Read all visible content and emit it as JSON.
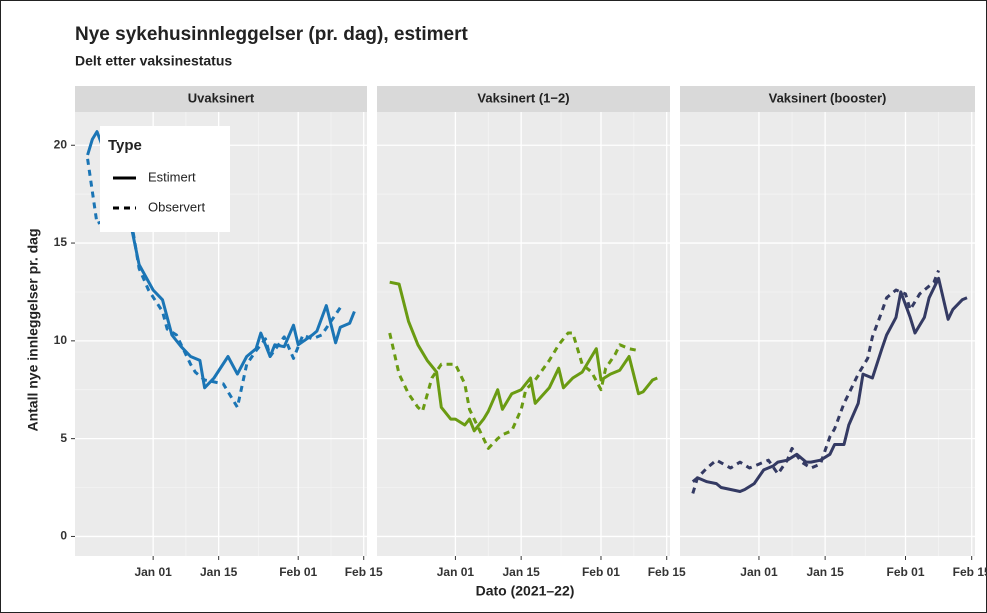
{
  "chart_data": {
    "type": "line",
    "title": "Nye sykehusinnleggelser (pr. dag), estimert",
    "subtitle": "Delt etter vaksinestatus",
    "x_label": "Dato (2021–22)",
    "y_label": "Antall nye innleggelser pr. dag",
    "legend_title": "Type",
    "legend": "top-left",
    "grid": true,
    "ylim": [
      -1.0,
      21.7
    ],
    "yticks": [
      0,
      5,
      10,
      15,
      20
    ],
    "xlim": [
      -16.7,
      45.7
    ],
    "xticks": [
      {
        "value": 0,
        "label": "Jan 01"
      },
      {
        "value": 14,
        "label": "Jan 15"
      },
      {
        "value": 31,
        "label": "Feb 01"
      },
      {
        "value": 45,
        "label": "Feb 15"
      }
    ],
    "facets": [
      {
        "title": "Uvaksinert",
        "series": [
          {
            "name": "Estimert",
            "color": "#1b75b5",
            "dash": false,
            "x": [
              -14,
              -13,
              -12,
              -5,
              -3,
              0,
              2,
              4,
              6,
              8,
              10,
              11,
              13,
              16,
              18,
              20,
              22,
              23,
              25,
              26,
              28,
              30,
              31,
              34,
              35,
              37,
              39,
              40,
              42,
              43
            ],
            "values": [
              19.5,
              20.3,
              20.7,
              16.2,
              13.9,
              12.6,
              12.1,
              10.3,
              9.7,
              9.2,
              9.0,
              7.6,
              8.1,
              9.2,
              8.3,
              9.2,
              9.6,
              10.4,
              9.2,
              9.8,
              9.7,
              10.8,
              9.8,
              10.3,
              10.5,
              11.8,
              9.9,
              10.7,
              10.9,
              11.5
            ]
          },
          {
            "name": "Observert",
            "color": "#1b75b5",
            "dash": true,
            "x": [
              -14,
              -12,
              -5,
              -3,
              -1,
              2,
              3,
              5,
              8,
              9,
              11,
              13,
              15,
              18,
              20,
              22,
              24,
              25,
              28,
              30,
              32,
              34,
              36,
              38,
              40
            ],
            "values": [
              19.3,
              16.0,
              16.6,
              13.7,
              12.6,
              11.5,
              10.6,
              10.3,
              8.8,
              8.4,
              8.0,
              7.9,
              7.8,
              6.6,
              8.8,
              9.5,
              10.1,
              9.2,
              10.2,
              9.1,
              10.3,
              10.1,
              10.3,
              11.0,
              11.7
            ]
          }
        ]
      },
      {
        "title": "Vaksinert (1−2)",
        "series": [
          {
            "name": "Estimert",
            "color": "#6a9b12",
            "dash": false,
            "x": [
              -14,
              -12,
              -10,
              -8,
              -6,
              -4,
              -3,
              -1,
              0,
              2,
              3,
              4,
              6,
              7,
              9,
              10,
              12,
              14,
              16,
              17,
              20,
              22,
              23,
              25,
              27,
              30,
              31,
              33,
              35,
              37,
              39,
              40,
              42,
              43
            ],
            "values": [
              13.0,
              12.9,
              11.0,
              9.8,
              9.0,
              8.4,
              6.6,
              6.0,
              6.0,
              5.7,
              6.0,
              5.4,
              6.0,
              6.4,
              7.5,
              6.5,
              7.3,
              7.5,
              8.1,
              6.8,
              7.6,
              8.6,
              7.6,
              8.1,
              8.4,
              9.6,
              8.0,
              8.3,
              8.5,
              9.2,
              7.3,
              7.4,
              8.0,
              8.1
            ]
          },
          {
            "name": "Observert",
            "color": "#6a9b12",
            "dash": true,
            "x": [
              -14,
              -12,
              -10,
              -8,
              -7,
              -5,
              -3,
              -2,
              0,
              2,
              3,
              5,
              7,
              9,
              10,
              12,
              14,
              15,
              17,
              20,
              22,
              24,
              25,
              27,
              29,
              31,
              32,
              34,
              35,
              37,
              39
            ],
            "values": [
              10.4,
              8.3,
              7.3,
              6.6,
              6.4,
              8.1,
              8.8,
              8.8,
              8.8,
              7.8,
              6.5,
              5.5,
              4.5,
              5.0,
              5.2,
              5.4,
              6.5,
              7.5,
              8.0,
              9.0,
              9.8,
              10.4,
              10.4,
              8.8,
              8.4,
              7.5,
              8.6,
              9.3,
              9.8,
              9.6,
              9.5
            ]
          }
        ]
      },
      {
        "title": "Vaksinert (booster)",
        "series": [
          {
            "name": "Estimert",
            "color": "#343a63",
            "dash": false,
            "x": [
              -14,
              -13,
              -11,
              -9,
              -8,
              -6,
              -4,
              -3,
              -1,
              1,
              3,
              4,
              6,
              8,
              10,
              11,
              13,
              15,
              16,
              18,
              19,
              21,
              22,
              24,
              26,
              27,
              29,
              30,
              32,
              33,
              35,
              36,
              38,
              40,
              41,
              43,
              44
            ],
            "values": [
              2.8,
              3.0,
              2.8,
              2.7,
              2.5,
              2.4,
              2.3,
              2.4,
              2.7,
              3.4,
              3.6,
              3.8,
              3.9,
              4.2,
              3.8,
              3.8,
              3.9,
              4.2,
              4.7,
              4.7,
              5.7,
              6.8,
              8.3,
              8.1,
              9.6,
              10.3,
              11.2,
              12.5,
              11.2,
              10.4,
              11.2,
              12.2,
              13.2,
              11.1,
              11.6,
              12.1,
              12.2
            ]
          },
          {
            "name": "Observert",
            "color": "#343a63",
            "dash": true,
            "x": [
              -14,
              -13,
              -11,
              -9,
              -6,
              -4,
              -2,
              0,
              2,
              4,
              6,
              7,
              9,
              11,
              13,
              15,
              16,
              18,
              19,
              21,
              23,
              24,
              26,
              27,
              29,
              31,
              32,
              34,
              35,
              37,
              38
            ],
            "values": [
              2.2,
              3.0,
              3.5,
              3.9,
              3.5,
              3.8,
              3.5,
              3.7,
              3.9,
              3.2,
              3.9,
              4.5,
              3.8,
              3.5,
              3.7,
              5.1,
              5.5,
              6.8,
              7.3,
              8.3,
              9.1,
              10.2,
              11.5,
              12.2,
              12.6,
              12.4,
              11.6,
              12.4,
              12.6,
              13.0,
              13.6
            ]
          }
        ]
      }
    ]
  }
}
